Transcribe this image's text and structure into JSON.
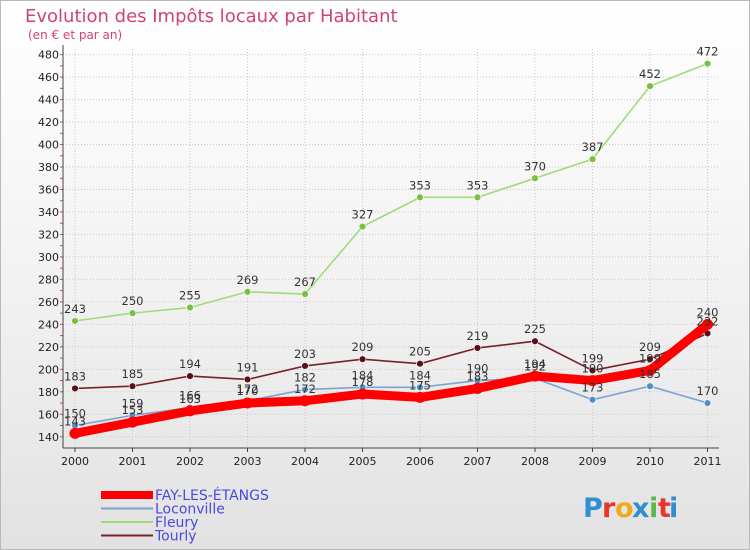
{
  "chart_data": {
    "type": "line",
    "title": "Evolution des Impôts locaux par Habitant",
    "subtitle": "(en € et par an)",
    "xlabel": "",
    "ylabel": "",
    "x": [
      "2000",
      "2001",
      "2002",
      "2003",
      "2004",
      "2005",
      "2006",
      "2007",
      "2008",
      "2009",
      "2010",
      "2011"
    ],
    "ylim": [
      130,
      485
    ],
    "yticks": [
      "140",
      "160",
      "180",
      "200",
      "220",
      "240",
      "260",
      "280",
      "300",
      "320",
      "340",
      "360",
      "380",
      "400",
      "420",
      "440",
      "460",
      "480"
    ],
    "grid": true,
    "legend_position": "bottom-left",
    "series": [
      {
        "name": "Tourly",
        "color": "#7b1f2a",
        "dot_color": "#5a0f16",
        "values": [
          183,
          185,
          194,
          191,
          203,
          209,
          205,
          219,
          225,
          199,
          209,
          232
        ],
        "labels": [
          "183",
          "185",
          "194",
          "191",
          "203",
          "209",
          "205",
          "219",
          "225",
          "199",
          "209",
          "232"
        ]
      },
      {
        "name": "Fleury",
        "color": "#9fdc77",
        "dot_color": "#77c040",
        "values": [
          243,
          250,
          255,
          269,
          267,
          327,
          353,
          353,
          370,
          387,
          452,
          472
        ],
        "labels": [
          "243",
          "250",
          "255",
          "269",
          "267",
          "327",
          "353",
          "353",
          "370",
          "387",
          "452",
          "472"
        ]
      },
      {
        "name": "Loconville",
        "color": "#7aa4d0",
        "dot_color": "#4f8ec9",
        "values": [
          150,
          159,
          166,
          172,
          182,
          184,
          184,
          190,
          192,
          173,
          185,
          170
        ],
        "labels": [
          "150",
          "159",
          "166",
          "172",
          "182",
          "184",
          "184",
          "190",
          "192",
          "173",
          "185",
          "170"
        ]
      },
      {
        "name": "FAY-LES-ÉTANGS",
        "color": "#ff0000",
        "dot_color": "#ff0000",
        "values": [
          143,
          153,
          163,
          170,
          172,
          178,
          175,
          183,
          194,
          190,
          199,
          240
        ],
        "labels": [
          "143",
          "153",
          "163",
          "170",
          "172",
          "178",
          "175",
          "183",
          "194",
          "190",
          "199",
          "240"
        ]
      }
    ]
  },
  "legend": {
    "items": [
      {
        "name": "FAY-LES-ÉTANGS",
        "color": "#ff0000"
      },
      {
        "name": "Loconville",
        "color": "#7aa4d0"
      },
      {
        "name": "Fleury",
        "color": "#9fdc77"
      },
      {
        "name": "Tourly",
        "color": "#7b1f2a"
      }
    ]
  },
  "brand": {
    "letters": [
      "P",
      "r",
      "o",
      "x",
      "i",
      "t",
      "i"
    ],
    "colors": [
      "#2f8fd0",
      "#e8352c",
      "#f2a81d",
      "#2f8fd0",
      "#59b947",
      "#e8352c",
      "#2f8fd0"
    ]
  }
}
